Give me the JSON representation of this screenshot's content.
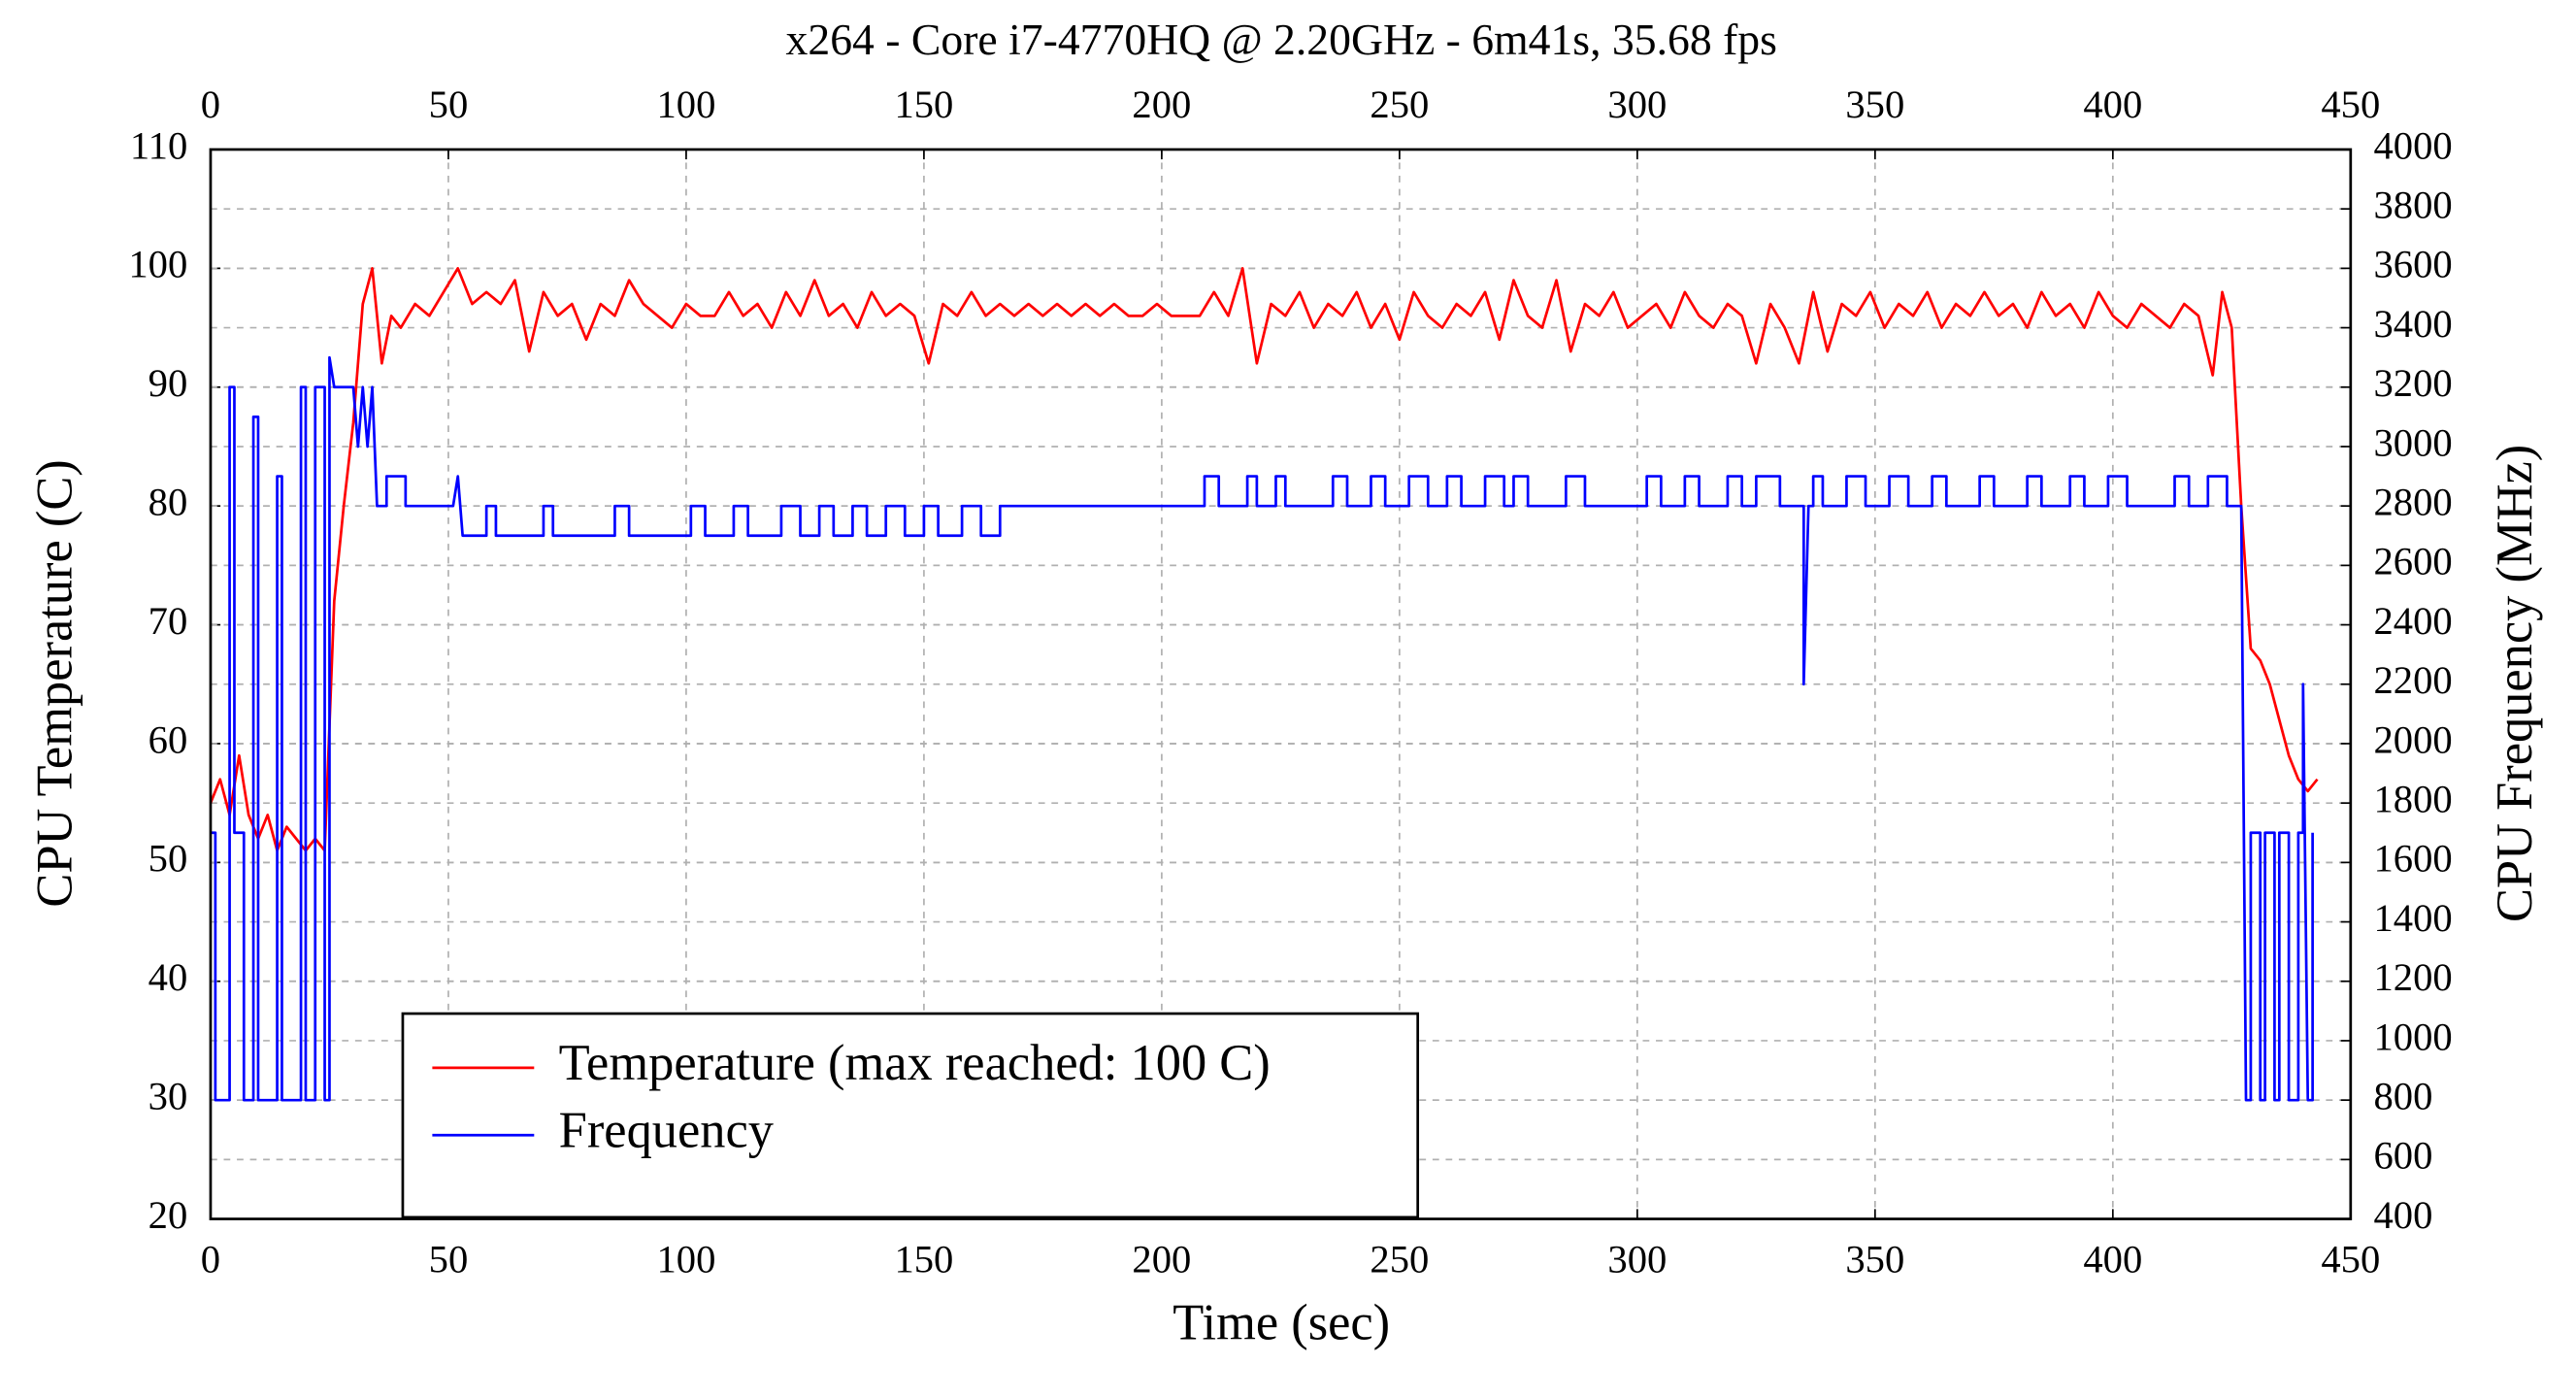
{
  "chart_data": {
    "type": "line",
    "title": "x264 - Core i7-4770HQ @ 2.20GHz - 6m41s, 35.68 fps",
    "xlabel": "Time (sec)",
    "ylabel": "CPU Temperature (C)",
    "y2label": "CPU Frequency (MHz)",
    "xlim": [
      0,
      450
    ],
    "xticks": [
      0,
      50,
      100,
      150,
      200,
      250,
      300,
      350,
      400,
      450
    ],
    "ylim": [
      20,
      110
    ],
    "yticks": [
      20,
      30,
      40,
      50,
      60,
      70,
      80,
      90,
      100,
      110
    ],
    "y2lim": [
      400,
      4000
    ],
    "y2ticks": [
      400,
      600,
      800,
      1000,
      1200,
      1400,
      1600,
      1800,
      2000,
      2200,
      2400,
      2600,
      2800,
      3000,
      3200,
      3400,
      3600,
      3800,
      4000
    ],
    "grid": true,
    "legend": "lower left",
    "ylabel_color": "#ff0000",
    "y2label_color": "#0000ff",
    "series": [
      {
        "name": "Temperature (max reached: 100 C)",
        "color": "#ff0000",
        "x": [
          0,
          2,
          4,
          6,
          8,
          10,
          12,
          14,
          16,
          18,
          20,
          22,
          24,
          26,
          28,
          30,
          32,
          34,
          36,
          38,
          40,
          43,
          46,
          49,
          52,
          55,
          58,
          61,
          64,
          67,
          70,
          73,
          76,
          79,
          82,
          85,
          88,
          91,
          94,
          97,
          100,
          103,
          106,
          109,
          112,
          115,
          118,
          121,
          124,
          127,
          130,
          133,
          136,
          139,
          142,
          145,
          148,
          151,
          154,
          157,
          160,
          163,
          166,
          169,
          172,
          175,
          178,
          181,
          184,
          187,
          190,
          193,
          196,
          199,
          202,
          205,
          208,
          211,
          214,
          217,
          220,
          223,
          226,
          229,
          232,
          235,
          238,
          241,
          244,
          247,
          250,
          253,
          256,
          259,
          262,
          265,
          268,
          271,
          274,
          277,
          280,
          283,
          286,
          289,
          292,
          295,
          298,
          301,
          304,
          307,
          310,
          313,
          316,
          319,
          322,
          325,
          328,
          331,
          334,
          337,
          340,
          343,
          346,
          349,
          352,
          355,
          358,
          361,
          364,
          367,
          370,
          373,
          376,
          379,
          382,
          385,
          388,
          391,
          394,
          397,
          400,
          403,
          406,
          409,
          412,
          415,
          418,
          421,
          423,
          425,
          427,
          429,
          431,
          433,
          435,
          437,
          439,
          441,
          443
        ],
        "values": [
          55,
          57,
          54,
          59,
          54,
          52,
          54,
          51,
          53,
          52,
          51,
          52,
          51,
          72,
          80,
          87,
          97,
          100,
          92,
          96,
          95,
          97,
          96,
          98,
          100,
          97,
          98,
          97,
          99,
          93,
          98,
          96,
          97,
          94,
          97,
          96,
          99,
          97,
          96,
          95,
          97,
          96,
          96,
          98,
          96,
          97,
          95,
          98,
          96,
          99,
          96,
          97,
          95,
          98,
          96,
          97,
          96,
          92,
          97,
          96,
          98,
          96,
          97,
          96,
          97,
          96,
          97,
          96,
          97,
          96,
          97,
          96,
          96,
          97,
          96,
          96,
          96,
          98,
          96,
          100,
          92,
          97,
          96,
          98,
          95,
          97,
          96,
          98,
          95,
          97,
          94,
          98,
          96,
          95,
          97,
          96,
          98,
          94,
          99,
          96,
          95,
          99,
          93,
          97,
          96,
          98,
          95,
          96,
          97,
          95,
          98,
          96,
          95,
          97,
          96,
          92,
          97,
          95,
          92,
          98,
          93,
          97,
          96,
          98,
          95,
          97,
          96,
          98,
          95,
          97,
          96,
          98,
          96,
          97,
          95,
          98,
          96,
          97,
          95,
          98,
          96,
          95,
          97,
          96,
          95,
          97,
          96,
          91,
          98,
          95,
          80,
          68,
          67,
          65,
          62,
          59,
          57,
          56,
          57
        ]
      },
      {
        "name": "Frequency",
        "color": "#0000ff",
        "axis": "y2",
        "x": [
          0,
          1,
          1,
          4,
          4,
          5,
          5,
          7,
          7,
          9,
          9,
          10,
          10,
          14,
          14,
          15,
          15,
          19,
          19,
          20,
          20,
          22,
          22,
          24,
          24,
          25,
          25,
          26,
          30,
          31,
          32,
          33,
          34,
          35,
          37,
          37,
          41,
          41,
          51,
          52,
          53,
          58,
          58,
          60,
          60,
          70,
          70,
          72,
          72,
          85,
          85,
          88,
          88,
          101,
          101,
          104,
          104,
          110,
          110,
          113,
          113,
          120,
          120,
          124,
          124,
          128,
          128,
          131,
          131,
          135,
          135,
          138,
          138,
          142,
          142,
          146,
          146,
          150,
          150,
          153,
          153,
          158,
          158,
          162,
          162,
          166,
          166,
          209,
          209,
          212,
          212,
          218,
          218,
          220,
          220,
          224,
          224,
          226,
          226,
          236,
          236,
          239,
          239,
          244,
          244,
          247,
          247,
          252,
          252,
          256,
          256,
          260,
          260,
          263,
          263,
          268,
          268,
          272,
          272,
          274,
          274,
          277,
          277,
          285,
          285,
          289,
          289,
          302,
          302,
          305,
          305,
          310,
          310,
          313,
          313,
          319,
          319,
          322,
          322,
          325,
          325,
          330,
          330,
          335,
          335,
          336,
          337,
          337,
          339,
          339,
          344,
          344,
          348,
          348,
          353,
          353,
          357,
          357,
          362,
          362,
          365,
          365,
          372,
          372,
          375,
          375,
          382,
          382,
          385,
          385,
          391,
          391,
          394,
          394,
          399,
          399,
          403,
          403,
          413,
          413,
          416,
          416,
          420,
          420,
          424,
          424,
          427,
          428,
          429,
          429,
          431,
          431,
          432,
          432,
          434,
          434,
          435,
          435,
          437,
          437,
          439,
          439,
          440,
          440,
          441,
          442,
          442
        ],
        "values": [
          1700,
          1700,
          800,
          800,
          3200,
          3200,
          1700,
          1700,
          800,
          800,
          3100,
          3100,
          800,
          800,
          2900,
          2900,
          800,
          800,
          3200,
          3200,
          800,
          800,
          3200,
          3200,
          800,
          800,
          3300,
          3200,
          3200,
          3000,
          3200,
          3000,
          3200,
          2800,
          2800,
          2900,
          2900,
          2800,
          2800,
          2900,
          2700,
          2700,
          2800,
          2800,
          2700,
          2700,
          2800,
          2800,
          2700,
          2700,
          2800,
          2800,
          2700,
          2700,
          2800,
          2800,
          2700,
          2700,
          2800,
          2800,
          2700,
          2700,
          2800,
          2800,
          2700,
          2700,
          2800,
          2800,
          2700,
          2700,
          2800,
          2800,
          2700,
          2700,
          2800,
          2800,
          2700,
          2700,
          2800,
          2800,
          2700,
          2700,
          2800,
          2800,
          2700,
          2700,
          2800,
          2800,
          2900,
          2900,
          2800,
          2800,
          2900,
          2900,
          2800,
          2800,
          2900,
          2900,
          2800,
          2800,
          2900,
          2900,
          2800,
          2800,
          2900,
          2900,
          2800,
          2800,
          2900,
          2900,
          2800,
          2800,
          2900,
          2900,
          2800,
          2800,
          2900,
          2900,
          2800,
          2800,
          2900,
          2900,
          2800,
          2800,
          2900,
          2900,
          2800,
          2800,
          2900,
          2900,
          2800,
          2800,
          2900,
          2900,
          2800,
          2800,
          2900,
          2900,
          2800,
          2800,
          2900,
          2900,
          2800,
          2800,
          2200,
          2800,
          2800,
          2900,
          2900,
          2800,
          2800,
          2900,
          2900,
          2800,
          2800,
          2900,
          2900,
          2800,
          2800,
          2900,
          2900,
          2800,
          2800,
          2900,
          2900,
          2800,
          2800,
          2900,
          2900,
          2800,
          2800,
          2900,
          2900,
          2800,
          2800,
          2900,
          2900,
          2800,
          2800,
          2900,
          2900,
          2800,
          2800,
          2900,
          2900,
          2800,
          2800,
          800,
          800,
          1700,
          1700,
          800,
          800,
          1700,
          1700,
          800,
          800,
          1700,
          1700,
          800,
          800,
          1700,
          1700,
          2200,
          800,
          800,
          1700
        ]
      }
    ]
  }
}
